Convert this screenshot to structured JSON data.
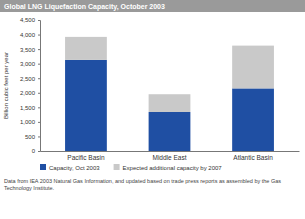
{
  "chart_data": {
    "type": "bar",
    "stacked": true,
    "title": "Global LNG Liquefaction Capacity, October 2003",
    "y_label": "Billion cubic feet per year",
    "categories": [
      "Pacific Basin",
      "Middle East",
      "Atlantic Basin"
    ],
    "series": [
      {
        "name": "Capacity, Oct 2003",
        "color": "#1f4fa3",
        "values": [
          3130,
          1340,
          2150
        ]
      },
      {
        "name": "Expected additional capacity by 2007",
        "color": "#c9c9c9",
        "values": [
          790,
          610,
          1470
        ]
      }
    ],
    "ylim": [
      0,
      4500
    ],
    "yticks": [
      0,
      500,
      {
        "value": 1000,
        "label": "1,000"
      },
      {
        "value": 1500,
        "label": "1,500"
      },
      {
        "value": 2000,
        "label": "2,000"
      },
      {
        "value": 2500,
        "label": "2,500"
      },
      {
        "value": 3000,
        "label": "3,000"
      },
      {
        "value": 3500,
        "label": "3,500"
      },
      {
        "value": 4000,
        "label": "4,000"
      },
      {
        "value": 4500,
        "label": "4,500"
      }
    ],
    "grid": false,
    "legend": "bottom",
    "annotations": [
      "Data from IEA 2003 Natural Gas Information, and updated based on trade press reports as assembled by the Gas Technology Institute."
    ]
  }
}
